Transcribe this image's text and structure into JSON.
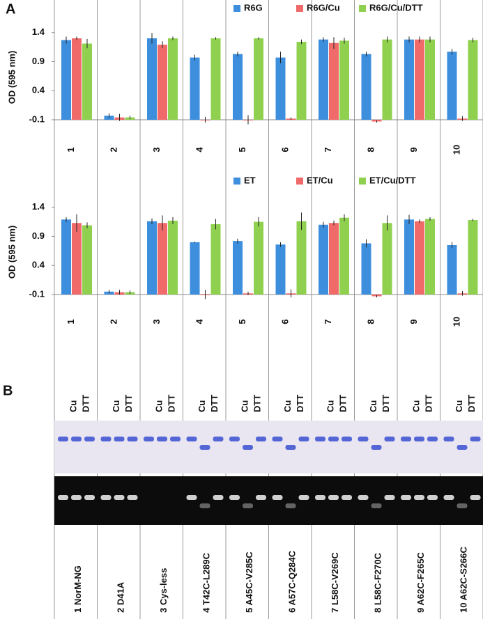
{
  "panel_labels": [
    "A",
    "B"
  ],
  "chart_data": [
    {
      "type": "bar",
      "y_label": "OD (595 nm)",
      "categories": [
        "1",
        "2",
        "3",
        "4",
        "5",
        "6",
        "7",
        "8",
        "9",
        "10"
      ],
      "series": [
        {
          "name": "R6G",
          "color": "#3d8fde",
          "values": [
            1.27,
            -0.03,
            1.3,
            0.97,
            1.03,
            0.97,
            1.28,
            1.03,
            1.28,
            1.07
          ],
          "errors": [
            0.06,
            0.04,
            0.09,
            0.05,
            0.04,
            0.1,
            0.04,
            0.04,
            0.05,
            0.05
          ]
        },
        {
          "name": "R6G/Cu",
          "color": "#f06a6a",
          "values": [
            1.3,
            -0.06,
            1.19,
            -0.1,
            -0.1,
            -0.08,
            1.22,
            -0.13,
            1.28,
            -0.08
          ],
          "errors": [
            0.03,
            0.06,
            0.06,
            0.05,
            0.08,
            0.02,
            0.1,
            0.02,
            0.05,
            0.04
          ]
        },
        {
          "name": "R6G/Cu/DTT",
          "color": "#8fd14f",
          "values": [
            1.21,
            -0.06,
            1.3,
            1.3,
            1.3,
            1.24,
            1.26,
            1.28,
            1.28,
            1.27
          ],
          "errors": [
            0.08,
            0.03,
            0.03,
            0.02,
            0.02,
            0.04,
            0.05,
            0.05,
            0.05,
            0.04
          ]
        }
      ],
      "ylim": [
        -0.1,
        1.6
      ],
      "yticks": [
        -0.1,
        0.4,
        0.9,
        1.4
      ],
      "legend": "top-right"
    },
    {
      "type": "bar",
      "y_label": "OD (595 nm)",
      "categories": [
        "1",
        "2",
        "3",
        "4",
        "5",
        "6",
        "7",
        "8",
        "9",
        "10"
      ],
      "series": [
        {
          "name": "ET",
          "color": "#3d8fde",
          "values": [
            1.19,
            -0.05,
            1.16,
            0.8,
            0.82,
            0.76,
            1.1,
            0.78,
            1.19,
            0.75
          ],
          "errors": [
            0.04,
            0.03,
            0.05,
            0.01,
            0.04,
            0.04,
            0.05,
            0.07,
            0.08,
            0.05
          ]
        },
        {
          "name": "ET/Cu",
          "color": "#f06a6a",
          "values": [
            1.13,
            -0.06,
            1.13,
            -0.1,
            -0.08,
            -0.08,
            1.13,
            -0.13,
            1.16,
            -0.08
          ],
          "errors": [
            0.15,
            0.04,
            0.13,
            0.08,
            0.03,
            0.07,
            0.04,
            0.02,
            0.03,
            0.04
          ]
        },
        {
          "name": "ET/Cu/DTT",
          "color": "#8fd14f",
          "values": [
            1.09,
            -0.06,
            1.17,
            1.11,
            1.15,
            1.16,
            1.22,
            1.13,
            1.2,
            1.18
          ],
          "errors": [
            0.05,
            0.03,
            0.06,
            0.09,
            0.08,
            0.15,
            0.06,
            0.13,
            0.03,
            0.02
          ]
        }
      ],
      "ylim": [
        -0.1,
        1.6
      ],
      "yticks": [
        -0.1,
        0.4,
        0.9,
        1.4
      ],
      "legend": "top-right"
    }
  ],
  "gel": {
    "conditions": [
      "Cu",
      "DTT"
    ],
    "lanes": [
      "1 NorM-NG",
      "2 D41A",
      "3 Cys-less",
      "4 T42C-L289C",
      "5 A45C-V285C",
      "6 A57C-Q284C",
      "7 L58C-V269C",
      "8 L58C-F270C",
      "9 A62C-F265C",
      "10 A62C-S266C"
    ]
  }
}
